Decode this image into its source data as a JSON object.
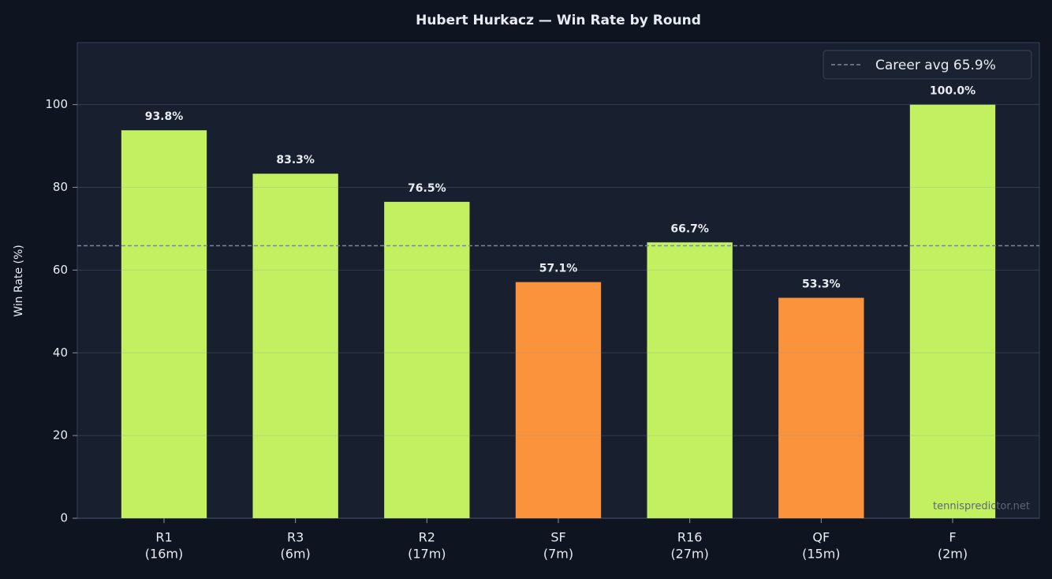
{
  "chart_data": {
    "type": "bar",
    "title": "Hubert Hurkacz — Win Rate by Round",
    "y_label": "Win Rate (%)",
    "categories": [
      [
        "R1",
        "(16m)"
      ],
      [
        "R3",
        "(6m)"
      ],
      [
        "R2",
        "(17m)"
      ],
      [
        "SF",
        "(7m)"
      ],
      [
        "R16",
        "(27m)"
      ],
      [
        "QF",
        "(15m)"
      ],
      [
        "F",
        "(2m)"
      ]
    ],
    "values": [
      93.8,
      83.3,
      76.5,
      57.1,
      66.7,
      53.3,
      100.0
    ],
    "value_labels": [
      "93.8%",
      "83.3%",
      "76.5%",
      "57.1%",
      "66.7%",
      "53.3%",
      "100.0%"
    ],
    "colors": [
      "#c2f061",
      "#c2f061",
      "#c2f061",
      "#fb923c",
      "#c2f061",
      "#fb923c",
      "#c2f061"
    ],
    "reference_line": {
      "value": 65.9,
      "label": "Career avg 65.9%",
      "color": "#7a8699"
    },
    "ylim": [
      0,
      115
    ],
    "yticks": [
      0,
      20,
      40,
      60,
      80,
      100
    ],
    "grid": true,
    "legend": "upper right",
    "watermark": "tennispredictor.net"
  }
}
